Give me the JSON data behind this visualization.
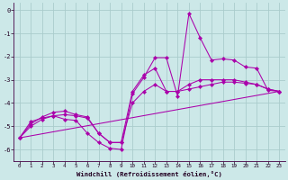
{
  "background_color": "#cce8e8",
  "grid_color": "#aacccc",
  "line_color": "#aa00aa",
  "xlabel": "Windchill (Refroidissement éolien,°C)",
  "xlim": [
    -0.5,
    23.5
  ],
  "ylim": [
    -6.5,
    0.3
  ],
  "yticks": [
    0,
    -1,
    -2,
    -3,
    -4,
    -5,
    -6
  ],
  "xticks": [
    0,
    1,
    2,
    3,
    4,
    5,
    6,
    7,
    8,
    9,
    10,
    11,
    12,
    13,
    14,
    15,
    16,
    17,
    18,
    19,
    20,
    21,
    22,
    23
  ],
  "line1_x": [
    0,
    1,
    2,
    3,
    4,
    5,
    6,
    7,
    8,
    9,
    10,
    11,
    12,
    13,
    14,
    15,
    16,
    17,
    18,
    19,
    20,
    21,
    22,
    23
  ],
  "line1_y": [
    -5.5,
    -4.8,
    -4.65,
    -4.55,
    -4.7,
    -4.75,
    -5.3,
    -5.7,
    -5.95,
    -6.0,
    -3.6,
    -2.9,
    -2.05,
    -2.05,
    -3.7,
    -0.15,
    -1.2,
    -2.15,
    -2.1,
    -2.15,
    -2.45,
    -2.5,
    -3.45,
    -3.5
  ],
  "line2_x": [
    0,
    1,
    2,
    3,
    4,
    5,
    6,
    7,
    8,
    9,
    10,
    11,
    12,
    13,
    14,
    15,
    16,
    17,
    18,
    19,
    20,
    21,
    22,
    23
  ],
  "line2_y": [
    -5.5,
    -4.9,
    -4.6,
    -4.4,
    -4.35,
    -4.5,
    -4.6,
    -5.3,
    -5.7,
    -5.7,
    -3.5,
    -2.8,
    -2.5,
    -3.5,
    -3.5,
    -3.2,
    -3.0,
    -3.0,
    -3.0,
    -3.0,
    -3.1,
    -3.2,
    -3.4,
    -3.5
  ],
  "line3_x": [
    0,
    1,
    2,
    3,
    4,
    5,
    6,
    7,
    8,
    9,
    10,
    11,
    12,
    13,
    14,
    15,
    16,
    17,
    18,
    19,
    20,
    21,
    22,
    23
  ],
  "line3_y": [
    -5.5,
    -5.0,
    -4.7,
    -4.55,
    -4.5,
    -4.55,
    -4.65,
    -5.3,
    -5.7,
    -5.7,
    -4.0,
    -3.5,
    -3.2,
    -3.5,
    -3.5,
    -3.4,
    -3.3,
    -3.2,
    -3.1,
    -3.1,
    -3.15,
    -3.2,
    -3.4,
    -3.5
  ],
  "line4_x": [
    0,
    23
  ],
  "line4_y": [
    -5.5,
    -3.5
  ]
}
